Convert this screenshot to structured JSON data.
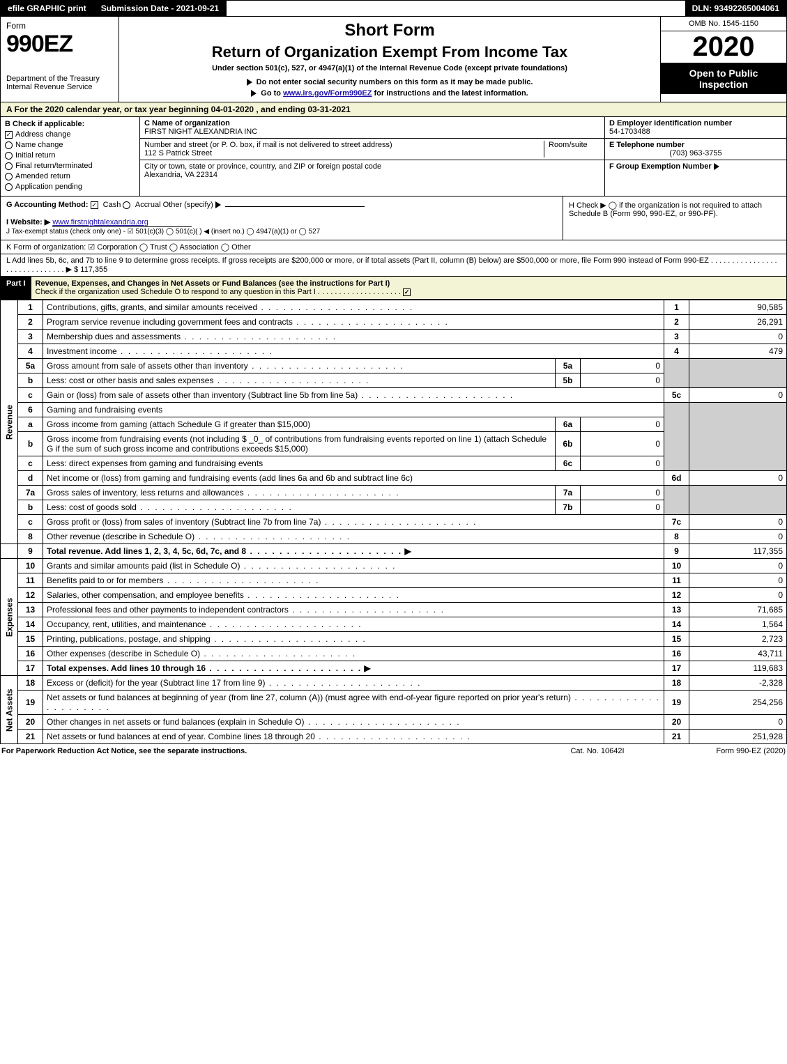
{
  "top": {
    "efile": "efile GRAPHIC print",
    "submission": "Submission Date - 2021-09-21",
    "dln": "DLN: 93492265004061"
  },
  "header": {
    "form_label": "Form",
    "form_number": "990EZ",
    "dept": "Department of the Treasury",
    "irs": "Internal Revenue Service",
    "short_form": "Short Form",
    "title": "Return of Organization Exempt From Income Tax",
    "subtitle": "Under section 501(c), 527, or 4947(a)(1) of the Internal Revenue Code (except private foundations)",
    "warn1": "Do not enter social security numbers on this form as it may be made public.",
    "warn2_pre": "Go to ",
    "warn2_link": "www.irs.gov/Form990EZ",
    "warn2_post": " for instructions and the latest information.",
    "omb": "OMB No. 1545-1150",
    "year": "2020",
    "open": "Open to Public Inspection"
  },
  "section_a": "A For the 2020 calendar year, or tax year beginning 04-01-2020 , and ending 03-31-2021",
  "box_b": {
    "title": "B Check if applicable:",
    "items": [
      {
        "label": "Address change",
        "checked": true,
        "circle": false
      },
      {
        "label": "Name change",
        "checked": false,
        "circle": true
      },
      {
        "label": "Initial return",
        "checked": false,
        "circle": true
      },
      {
        "label": "Final return/terminated",
        "checked": false,
        "circle": true
      },
      {
        "label": "Amended return",
        "checked": false,
        "circle": true
      },
      {
        "label": "Application pending",
        "checked": false,
        "circle": true
      }
    ]
  },
  "box_c": {
    "name_label": "C Name of organization",
    "name": "FIRST NIGHT ALEXANDRIA INC",
    "addr_label": "Number and street (or P. O. box, if mail is not delivered to street address)",
    "room_label": "Room/suite",
    "addr": "112 S Patrick Street",
    "city_label": "City or town, state or province, country, and ZIP or foreign postal code",
    "city": "Alexandria, VA  22314"
  },
  "box_d": {
    "ein_label": "D Employer identification number",
    "ein": "54-1703488",
    "phone_label": "E Telephone number",
    "phone": "(703) 963-3755",
    "group_label": "F Group Exemption Number",
    "group": ""
  },
  "row_g": {
    "label": "G Accounting Method:",
    "cash": "Cash",
    "accrual": "Accrual",
    "other": "Other (specify)"
  },
  "row_h": "H  Check ▶  ◯ if the organization is not required to attach Schedule B (Form 990, 990-EZ, or 990-PF).",
  "row_i": {
    "label": "I Website: ▶",
    "value": "www.firstnightalexandria.org"
  },
  "row_j": "J Tax-exempt status (check only one) - ☑ 501(c)(3) ◯ 501(c)(  ) ◀ (insert no.) ◯ 4947(a)(1) or ◯ 527",
  "row_k": "K Form of organization:  ☑ Corporation  ◯ Trust  ◯ Association  ◯ Other",
  "row_l": {
    "text": "L Add lines 5b, 6c, and 7b to line 9 to determine gross receipts. If gross receipts are $200,000 or more, or if total assets (Part II, column (B) below) are $500,000 or more, file Form 990 instead of Form 990-EZ . . . . . . . . . . . . . . . . . . . . . . . . . . . . . . ▶",
    "amount": "$ 117,355"
  },
  "part1": {
    "label": "Part I",
    "title": "Revenue, Expenses, and Changes in Net Assets or Fund Balances (see the instructions for Part I)",
    "check_o": "Check if the organization used Schedule O to respond to any question in this Part I . . . . . . . . . . . . . . . . . . . .",
    "check_o_checked": true
  },
  "side_labels": {
    "revenue": "Revenue",
    "expenses": "Expenses",
    "netassets": "Net Assets"
  },
  "lines": {
    "l1": {
      "n": "1",
      "desc": "Contributions, gifts, grants, and similar amounts received",
      "ln": "1",
      "val": "90,585"
    },
    "l2": {
      "n": "2",
      "desc": "Program service revenue including government fees and contracts",
      "ln": "2",
      "val": "26,291"
    },
    "l3": {
      "n": "3",
      "desc": "Membership dues and assessments",
      "ln": "3",
      "val": "0"
    },
    "l4": {
      "n": "4",
      "desc": "Investment income",
      "ln": "4",
      "val": "479"
    },
    "l5a": {
      "n": "5a",
      "desc": "Gross amount from sale of assets other than inventory",
      "sub": "5a",
      "subval": "0"
    },
    "l5b": {
      "n": "b",
      "desc": "Less: cost or other basis and sales expenses",
      "sub": "5b",
      "subval": "0"
    },
    "l5c": {
      "n": "c",
      "desc": "Gain or (loss) from sale of assets other than inventory (Subtract line 5b from line 5a)",
      "ln": "5c",
      "val": "0"
    },
    "l6": {
      "n": "6",
      "desc": "Gaming and fundraising events"
    },
    "l6a": {
      "n": "a",
      "desc": "Gross income from gaming (attach Schedule G if greater than $15,000)",
      "sub": "6a",
      "subval": "0"
    },
    "l6b": {
      "n": "b",
      "desc": "Gross income from fundraising events (not including $ _0_ of contributions from fundraising events reported on line 1) (attach Schedule G if the sum of such gross income and contributions exceeds $15,000)",
      "sub": "6b",
      "subval": "0"
    },
    "l6c": {
      "n": "c",
      "desc": "Less: direct expenses from gaming and fundraising events",
      "sub": "6c",
      "subval": "0"
    },
    "l6d": {
      "n": "d",
      "desc": "Net income or (loss) from gaming and fundraising events (add lines 6a and 6b and subtract line 6c)",
      "ln": "6d",
      "val": "0"
    },
    "l7a": {
      "n": "7a",
      "desc": "Gross sales of inventory, less returns and allowances",
      "sub": "7a",
      "subval": "0"
    },
    "l7b": {
      "n": "b",
      "desc": "Less: cost of goods sold",
      "sub": "7b",
      "subval": "0"
    },
    "l7c": {
      "n": "c",
      "desc": "Gross profit or (loss) from sales of inventory (Subtract line 7b from line 7a)",
      "ln": "7c",
      "val": "0"
    },
    "l8": {
      "n": "8",
      "desc": "Other revenue (describe in Schedule O)",
      "ln": "8",
      "val": "0"
    },
    "l9": {
      "n": "9",
      "desc": "Total revenue. Add lines 1, 2, 3, 4, 5c, 6d, 7c, and 8",
      "ln": "9",
      "val": "117,355",
      "bold": true
    },
    "l10": {
      "n": "10",
      "desc": "Grants and similar amounts paid (list in Schedule O)",
      "ln": "10",
      "val": "0"
    },
    "l11": {
      "n": "11",
      "desc": "Benefits paid to or for members",
      "ln": "11",
      "val": "0"
    },
    "l12": {
      "n": "12",
      "desc": "Salaries, other compensation, and employee benefits",
      "ln": "12",
      "val": "0"
    },
    "l13": {
      "n": "13",
      "desc": "Professional fees and other payments to independent contractors",
      "ln": "13",
      "val": "71,685"
    },
    "l14": {
      "n": "14",
      "desc": "Occupancy, rent, utilities, and maintenance",
      "ln": "14",
      "val": "1,564"
    },
    "l15": {
      "n": "15",
      "desc": "Printing, publications, postage, and shipping",
      "ln": "15",
      "val": "2,723"
    },
    "l16": {
      "n": "16",
      "desc": "Other expenses (describe in Schedule O)",
      "ln": "16",
      "val": "43,711"
    },
    "l17": {
      "n": "17",
      "desc": "Total expenses. Add lines 10 through 16",
      "ln": "17",
      "val": "119,683",
      "bold": true
    },
    "l18": {
      "n": "18",
      "desc": "Excess or (deficit) for the year (Subtract line 17 from line 9)",
      "ln": "18",
      "val": "-2,328"
    },
    "l19": {
      "n": "19",
      "desc": "Net assets or fund balances at beginning of year (from line 27, column (A)) (must agree with end-of-year figure reported on prior year's return)",
      "ln": "19",
      "val": "254,256"
    },
    "l20": {
      "n": "20",
      "desc": "Other changes in net assets or fund balances (explain in Schedule O)",
      "ln": "20",
      "val": "0"
    },
    "l21": {
      "n": "21",
      "desc": "Net assets or fund balances at end of year. Combine lines 18 through 20",
      "ln": "21",
      "val": "251,928"
    }
  },
  "foot": {
    "left": "For Paperwork Reduction Act Notice, see the separate instructions.",
    "mid": "Cat. No. 10642I",
    "right": "Form 990-EZ (2020)"
  },
  "colors": {
    "black": "#000000",
    "cream": "#f3f3d6",
    "grey": "#cfcfcf",
    "link": "#1a0dab"
  }
}
